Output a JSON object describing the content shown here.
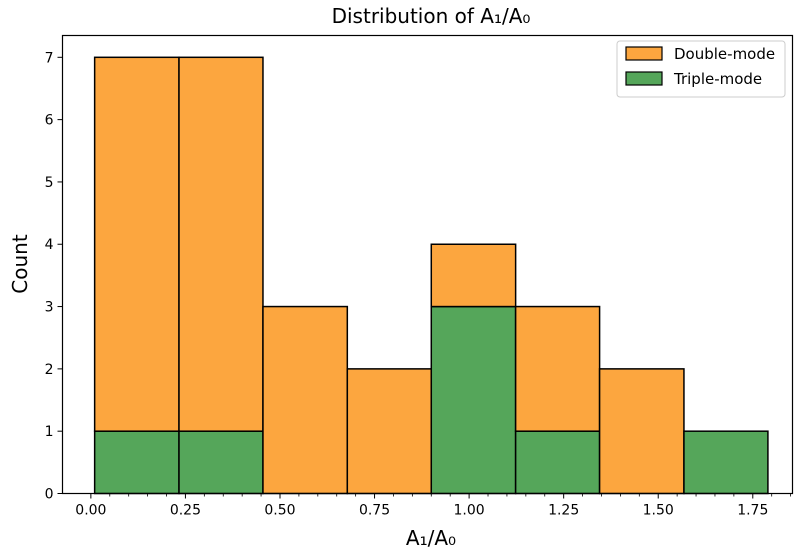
{
  "chart_data": {
    "type": "bar",
    "stacked": true,
    "title": "Distribution of A₁/A₀",
    "xlabel": "A₁/A₀",
    "ylabel": "Count",
    "bin_edges": [
      0.01,
      0.233,
      0.455,
      0.678,
      0.9,
      1.123,
      1.345,
      1.568,
      1.79
    ],
    "xlim": [
      -0.075,
      1.855
    ],
    "ylim": [
      0,
      7.35
    ],
    "xticks": [
      "0.00",
      "0.25",
      "0.50",
      "0.75",
      "1.00",
      "1.25",
      "1.50",
      "1.75"
    ],
    "yticks": [
      "0",
      "1",
      "2",
      "3",
      "4",
      "5",
      "6",
      "7"
    ],
    "series": [
      {
        "name": "Triple-mode",
        "values": [
          1,
          1,
          0,
          0,
          3,
          1,
          0,
          1
        ],
        "color": "#55a65a"
      },
      {
        "name": "Double-mode",
        "values": [
          6,
          6,
          3,
          2,
          1,
          2,
          2,
          0
        ],
        "color": "#fca63f"
      }
    ],
    "legend": {
      "position": "top-right",
      "entries": [
        "Double-mode",
        "Triple-mode"
      ]
    },
    "grid": false
  }
}
